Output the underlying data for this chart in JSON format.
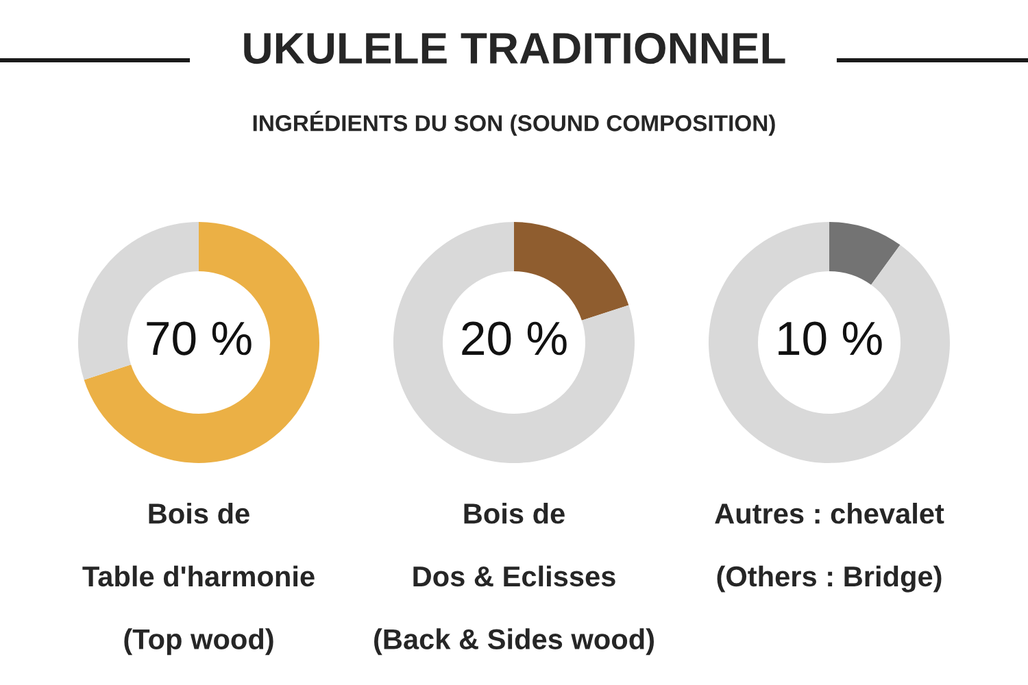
{
  "chart_data": [
    {
      "type": "donut",
      "title": "UKULELE TRADITIONNEL",
      "subtitle": "INGRÉDIENTS DU SON (SOUND COMPOSITION)",
      "xlabel": "Bois de\nTable d'harmonie\n(Top wood)",
      "categories": [
        null,
        null
      ],
      "values": [
        70,
        30
      ],
      "colors": [
        "#ebb045",
        "#d9d9d9"
      ],
      "value_labels": [
        "70 %",
        null
      ]
    },
    {
      "type": "donut",
      "xlabel": "Bois de\nDos & Eclisses\n(Back & Sides wood)",
      "categories": [
        null,
        null
      ],
      "values": [
        20,
        80
      ],
      "colors": [
        "#8f5d2f",
        "#d9d9d9"
      ],
      "value_labels": [
        "20 %",
        null
      ]
    },
    {
      "type": "donut",
      "xlabel": "Autres : chevalet\n(Others : Bridge)",
      "categories": [
        null,
        null
      ],
      "values": [
        10,
        90
      ],
      "colors": [
        "#737373",
        "#d9d9d9"
      ],
      "value_labels": [
        "10 %",
        null
      ]
    }
  ]
}
